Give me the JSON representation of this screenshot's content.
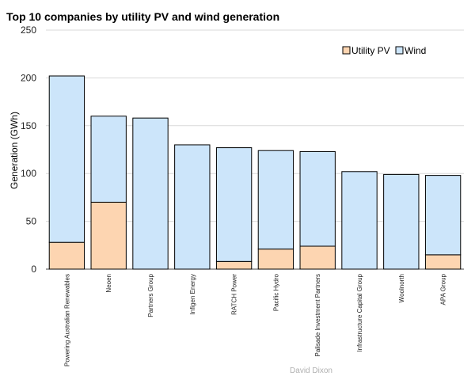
{
  "chart_data": {
    "type": "bar",
    "stacked": true,
    "title": "Top 10 companies by utility PV and wind generation",
    "xlabel": "",
    "ylabel": "Generation (GWh)",
    "ylim": [
      0,
      250
    ],
    "yticks": [
      0,
      50,
      100,
      150,
      200,
      250
    ],
    "grid": true,
    "legend_position": "top-right",
    "categories": [
      "Powering Australian Renewables",
      "Neoen",
      "Partners Group",
      "Infigen Energy",
      "RATCH Power",
      "Pacific Hydro",
      "Palisade Investment Partners",
      "Infrastructure Capital Group",
      "Woolnorth",
      "APA Group"
    ],
    "series": [
      {
        "name": "Utility PV",
        "color": "#fdd5b1",
        "values": [
          28,
          70,
          0,
          0,
          8,
          21,
          24,
          0,
          0,
          15
        ]
      },
      {
        "name": "Wind",
        "color": "#cce5fa",
        "values": [
          174,
          90,
          158,
          130,
          119,
          103,
          99,
          102,
          99,
          83
        ]
      }
    ],
    "footer": "David Dixon"
  }
}
